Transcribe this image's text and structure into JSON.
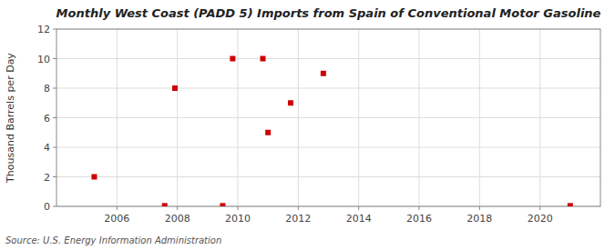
{
  "chart_data": {
    "type": "scatter",
    "title": "Monthly West Coast (PADD 5) Imports from Spain of Conventional Motor Gasoline",
    "ylabel": "Thousand Barrels per Day",
    "source": "Source: U.S. Energy Information Administration",
    "x": [
      2005.25,
      2007.58,
      2007.92,
      2009.5,
      2009.83,
      2010.83,
      2011.0,
      2011.75,
      2012.83,
      2021.0
    ],
    "values": [
      2,
      0.04,
      8,
      0.04,
      10,
      10,
      5,
      7,
      9,
      0.04
    ],
    "color": "#cc0000",
    "marker": "square",
    "xlim": [
      2004.0,
      2022.0
    ],
    "ylim": [
      0,
      12
    ],
    "xticks": [
      2006,
      2008,
      2010,
      2012,
      2014,
      2016,
      2018,
      2020
    ],
    "yticks": [
      0,
      2,
      4,
      6,
      8,
      10,
      12
    ],
    "grid": true
  }
}
